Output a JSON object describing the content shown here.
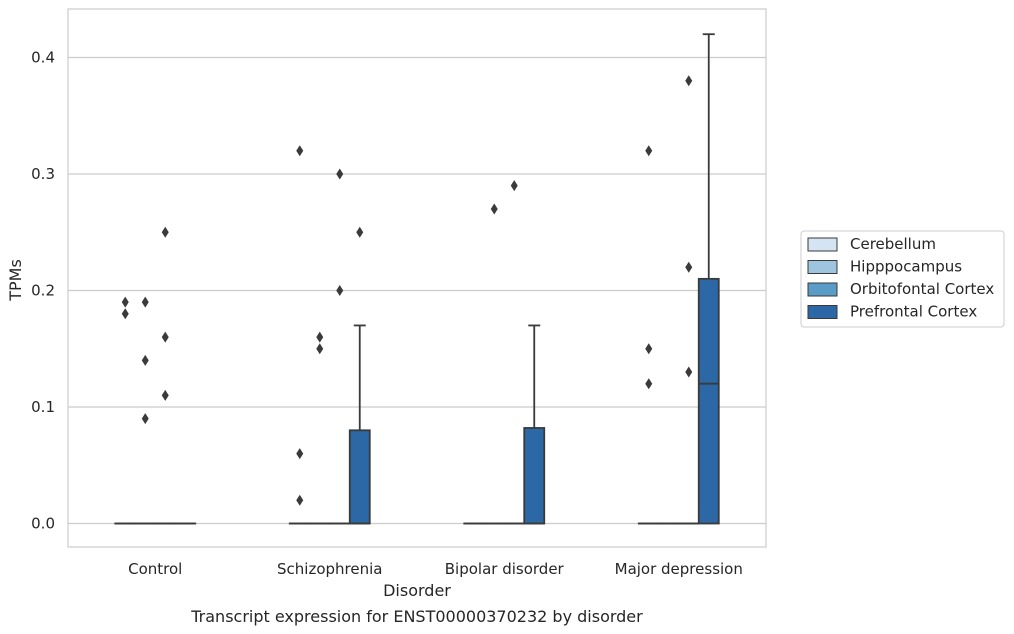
{
  "chart_data": {
    "type": "box",
    "caption": "Transcript expression for ENST00000370232 by disorder",
    "xlabel": "Disorder",
    "ylabel": "TPMs",
    "ylim": [
      -0.02,
      0.44
    ],
    "yticks": [
      "0.0",
      "0.1",
      "0.2",
      "0.3",
      "0.4"
    ],
    "ytick_values": [
      0.0,
      0.1,
      0.2,
      0.3,
      0.4
    ],
    "grid": "horizontal",
    "legend_position": "right",
    "categories": [
      "Control",
      "Schizophrenia",
      "Bipolar disorder",
      "Major depression"
    ],
    "series": [
      {
        "name": "Cerebellum",
        "color": "#d4e4f2",
        "boxes": [
          {
            "q1": 0,
            "median": 0,
            "q3": 0,
            "whisker_low": 0,
            "whisker_high": 0,
            "outliers": [
              0.19,
              0.18
            ]
          },
          {
            "q1": 0,
            "median": 0,
            "q3": 0,
            "whisker_low": 0,
            "whisker_high": 0,
            "outliers": [
              0.32,
              0.06,
              0.02
            ]
          },
          {
            "q1": 0,
            "median": 0,
            "q3": 0,
            "whisker_low": 0,
            "whisker_high": 0,
            "outliers": []
          },
          {
            "q1": 0,
            "median": 0,
            "q3": 0,
            "whisker_low": 0,
            "whisker_high": 0,
            "outliers": [
              0.32,
              0.15,
              0.12
            ]
          }
        ]
      },
      {
        "name": "Hipppocampus",
        "color": "#9ec5de",
        "boxes": [
          {
            "q1": 0,
            "median": 0,
            "q3": 0,
            "whisker_low": 0,
            "whisker_high": 0,
            "outliers": [
              0.19,
              0.14,
              0.09
            ]
          },
          {
            "q1": 0,
            "median": 0,
            "q3": 0,
            "whisker_low": 0,
            "whisker_high": 0,
            "outliers": [
              0.16,
              0.15
            ]
          },
          {
            "q1": 0,
            "median": 0,
            "q3": 0,
            "whisker_low": 0,
            "whisker_high": 0,
            "outliers": [
              0.27
            ]
          },
          {
            "q1": 0,
            "median": 0,
            "q3": 0,
            "whisker_low": 0,
            "whisker_high": 0,
            "outliers": []
          }
        ]
      },
      {
        "name": "Orbitofontal Cortex",
        "color": "#5a9bc8",
        "boxes": [
          {
            "q1": 0,
            "median": 0,
            "q3": 0,
            "whisker_low": 0,
            "whisker_high": 0,
            "outliers": [
              0.25,
              0.16,
              0.11
            ]
          },
          {
            "q1": 0,
            "median": 0,
            "q3": 0,
            "whisker_low": 0,
            "whisker_high": 0,
            "outliers": [
              0.3,
              0.2
            ]
          },
          {
            "q1": 0,
            "median": 0,
            "q3": 0,
            "whisker_low": 0,
            "whisker_high": 0,
            "outliers": [
              0.29
            ]
          },
          {
            "q1": 0,
            "median": 0,
            "q3": 0,
            "whisker_low": 0,
            "whisker_high": 0,
            "outliers": [
              0.38,
              0.22,
              0.13
            ]
          }
        ]
      },
      {
        "name": "Prefrontal Cortex",
        "color": "#2b68a5",
        "boxes": [
          {
            "q1": 0,
            "median": 0,
            "q3": 0,
            "whisker_low": 0,
            "whisker_high": 0,
            "outliers": []
          },
          {
            "q1": 0,
            "median": 0,
            "q3": 0.08,
            "whisker_low": 0,
            "whisker_high": 0.17,
            "outliers": [
              0.25
            ]
          },
          {
            "q1": 0,
            "median": 0,
            "q3": 0.082,
            "whisker_low": 0,
            "whisker_high": 0.17,
            "outliers": []
          },
          {
            "q1": 0,
            "median": 0.12,
            "q3": 0.21,
            "whisker_low": 0,
            "whisker_high": 0.42,
            "outliers": []
          }
        ]
      }
    ]
  }
}
